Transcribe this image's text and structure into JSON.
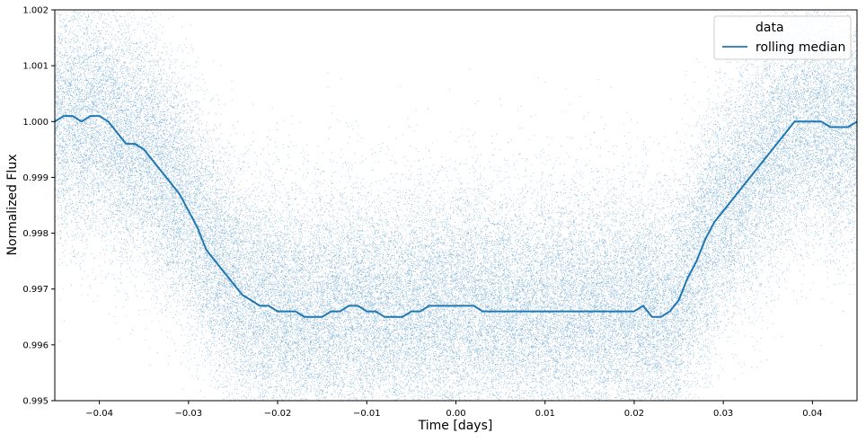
{
  "chart_data": {
    "type": "scatter",
    "title": "",
    "xlabel": "Time [days]",
    "ylabel": "Normalized Flux",
    "xlim": [
      -0.045,
      0.045
    ],
    "ylim": [
      0.995,
      1.002
    ],
    "grid": false,
    "x_ticks": [
      -0.04,
      -0.03,
      -0.02,
      -0.01,
      0.0,
      0.01,
      0.02,
      0.03,
      0.04
    ],
    "x_tick_labels": [
      "−0.04",
      "−0.03",
      "−0.02",
      "−0.01",
      "0.00",
      "0.01",
      "0.02",
      "0.03",
      "0.04"
    ],
    "y_ticks": [
      0.995,
      0.996,
      0.997,
      0.998,
      0.999,
      1.0,
      1.001,
      1.002
    ],
    "y_tick_labels": [
      "0.995",
      "0.996",
      "0.997",
      "0.998",
      "0.999",
      "1.000",
      "1.001",
      "1.002"
    ],
    "legend": {
      "placement": "upper-right",
      "entries": [
        {
          "label": "data",
          "kind": "points"
        },
        {
          "label": "rolling median",
          "kind": "line"
        }
      ]
    },
    "series": [
      {
        "name": "data",
        "kind": "scatter",
        "color": "#1f77b4",
        "description_stats": {
          "n_points_approx": 60000,
          "noise_sigma": 0.0011
        }
      },
      {
        "name": "rolling median",
        "kind": "line",
        "color": "#1f77b4",
        "x": [
          -0.045,
          -0.044,
          -0.043,
          -0.042,
          -0.041,
          -0.04,
          -0.039,
          -0.038,
          -0.037,
          -0.036,
          -0.035,
          -0.034,
          -0.033,
          -0.032,
          -0.031,
          -0.03,
          -0.029,
          -0.028,
          -0.027,
          -0.026,
          -0.025,
          -0.024,
          -0.023,
          -0.022,
          -0.021,
          -0.02,
          -0.019,
          -0.018,
          -0.017,
          -0.016,
          -0.015,
          -0.014,
          -0.013,
          -0.012,
          -0.011,
          -0.01,
          -0.009,
          -0.008,
          -0.007,
          -0.006,
          -0.005,
          -0.004,
          -0.003,
          -0.002,
          -0.001,
          0.0,
          0.001,
          0.002,
          0.003,
          0.004,
          0.005,
          0.006,
          0.007,
          0.008,
          0.009,
          0.01,
          0.011,
          0.012,
          0.013,
          0.014,
          0.015,
          0.016,
          0.017,
          0.018,
          0.019,
          0.02,
          0.021,
          0.022,
          0.023,
          0.024,
          0.025,
          0.026,
          0.027,
          0.028,
          0.029,
          0.03,
          0.031,
          0.032,
          0.033,
          0.034,
          0.035,
          0.036,
          0.037,
          0.038,
          0.039,
          0.04,
          0.041,
          0.042,
          0.043,
          0.044,
          0.045
        ],
        "y": [
          1.0,
          1.0001,
          1.0001,
          1.0,
          1.0001,
          1.0001,
          1.0,
          0.9998,
          0.9996,
          0.9996,
          0.9995,
          0.9993,
          0.9991,
          0.9989,
          0.9987,
          0.9984,
          0.9981,
          0.9977,
          0.9975,
          0.9973,
          0.9971,
          0.9969,
          0.9968,
          0.9967,
          0.9967,
          0.9966,
          0.9966,
          0.9966,
          0.9965,
          0.9965,
          0.9965,
          0.9966,
          0.9966,
          0.9967,
          0.9967,
          0.9966,
          0.9966,
          0.9965,
          0.9965,
          0.9965,
          0.9966,
          0.9966,
          0.9967,
          0.9967,
          0.9967,
          0.9967,
          0.9967,
          0.9967,
          0.9966,
          0.9966,
          0.9966,
          0.9966,
          0.9966,
          0.9966,
          0.9966,
          0.9966,
          0.9966,
          0.9966,
          0.9966,
          0.9966,
          0.9966,
          0.9966,
          0.9966,
          0.9966,
          0.9966,
          0.9966,
          0.9967,
          0.9965,
          0.9965,
          0.9966,
          0.9968,
          0.9972,
          0.9975,
          0.9979,
          0.9982,
          0.9984,
          0.9986,
          0.9988,
          0.999,
          0.9992,
          0.9994,
          0.9996,
          0.9998,
          1.0,
          1.0,
          1.0,
          1.0,
          0.9999,
          0.9999,
          0.9999,
          1.0
        ]
      }
    ]
  }
}
